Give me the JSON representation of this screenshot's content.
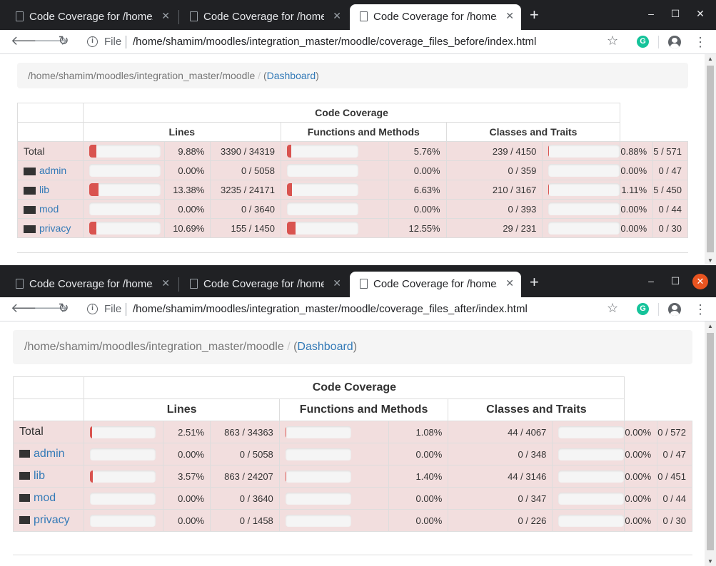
{
  "top": {
    "tabs": [
      {
        "title": "Code Coverage for /home/shamim/moodles/integration_master/moodle",
        "close": "✕"
      },
      {
        "title": "Code Coverage for /home/shamim/moodles/integration_master/moodle",
        "close": "✕"
      },
      {
        "title": "Code Coverage for /home/shamim/moodles/integration_master/moodle",
        "close": "✕"
      }
    ],
    "new_tab": "+",
    "window_controls": {
      "minimize": "–",
      "maximize": "☐",
      "close": "✕"
    },
    "address": {
      "scheme_label": "File",
      "url": "/home/shamim/moodles/integration_master/moodle/coverage_files_before/index.html"
    },
    "breadcrumb": {
      "path": "/home/shamim/moodles/integration_master/moodle",
      "separator": "/",
      "open_paren": "(",
      "link": "Dashboard",
      "close_paren": ")"
    },
    "table": {
      "title": "Code Coverage",
      "groups": [
        "Lines",
        "Functions and Methods",
        "Classes and Traits"
      ],
      "rows": [
        {
          "name": "Total",
          "folder": false,
          "lines_pct": "9.88%",
          "lines_frac": "3390 / 34319",
          "lines_ratio": 0.0988,
          "funcs_pct": "5.76%",
          "funcs_frac": "239 / 4150",
          "funcs_ratio": 0.0576,
          "classes_pct": "0.88%",
          "classes_frac": "5 / 571",
          "classes_ratio": 0.0088
        },
        {
          "name": "admin",
          "folder": true,
          "lines_pct": "0.00%",
          "lines_frac": "0 / 5058",
          "lines_ratio": 0,
          "funcs_pct": "0.00%",
          "funcs_frac": "0 / 359",
          "funcs_ratio": 0,
          "classes_pct": "0.00%",
          "classes_frac": "0 / 47",
          "classes_ratio": 0
        },
        {
          "name": "lib",
          "folder": true,
          "lines_pct": "13.38%",
          "lines_frac": "3235 / 24171",
          "lines_ratio": 0.1338,
          "funcs_pct": "6.63%",
          "funcs_frac": "210 / 3167",
          "funcs_ratio": 0.0663,
          "classes_pct": "1.11%",
          "classes_frac": "5 / 450",
          "classes_ratio": 0.0111
        },
        {
          "name": "mod",
          "folder": true,
          "lines_pct": "0.00%",
          "lines_frac": "0 / 3640",
          "lines_ratio": 0,
          "funcs_pct": "0.00%",
          "funcs_frac": "0 / 393",
          "funcs_ratio": 0,
          "classes_pct": "0.00%",
          "classes_frac": "0 / 44",
          "classes_ratio": 0
        },
        {
          "name": "privacy",
          "folder": true,
          "lines_pct": "10.69%",
          "lines_frac": "155 / 1450",
          "lines_ratio": 0.1069,
          "funcs_pct": "12.55%",
          "funcs_frac": "29 / 231",
          "funcs_ratio": 0.1255,
          "classes_pct": "0.00%",
          "classes_frac": "0 / 30",
          "classes_ratio": 0
        }
      ]
    }
  },
  "bottom": {
    "tabs": [
      {
        "title": "Code Coverage for /home/shamim/moodles/integration_master/moodle",
        "close": "✕"
      },
      {
        "title": "Code Coverage for /home/shamim/moodles/integration_master/moodle",
        "close": "✕"
      },
      {
        "title": "Code Coverage for /home/shamim/moodles/integration_master/moodle",
        "close": "✕"
      }
    ],
    "new_tab": "+",
    "window_controls": {
      "minimize": "–",
      "maximize": "☐",
      "close": "✕"
    },
    "address": {
      "scheme_label": "File",
      "url": "/home/shamim/moodles/integration_master/moodle/coverage_files_after/index.html"
    },
    "breadcrumb": {
      "path": "/home/shamim/moodles/integration_master/moodle",
      "separator": "/",
      "open_paren": "(",
      "link": "Dashboard",
      "close_paren": ")"
    },
    "table": {
      "title": "Code Coverage",
      "groups": [
        "Lines",
        "Functions and Methods",
        "Classes and Traits"
      ],
      "rows": [
        {
          "name": "Total",
          "folder": false,
          "lines_pct": "2.51%",
          "lines_frac": "863 / 34363",
          "lines_ratio": 0.0251,
          "funcs_pct": "1.08%",
          "funcs_frac": "44 / 4067",
          "funcs_ratio": 0.0108,
          "classes_pct": "0.00%",
          "classes_frac": "0 / 572",
          "classes_ratio": 0
        },
        {
          "name": "admin",
          "folder": true,
          "lines_pct": "0.00%",
          "lines_frac": "0 / 5058",
          "lines_ratio": 0,
          "funcs_pct": "0.00%",
          "funcs_frac": "0 / 348",
          "funcs_ratio": 0,
          "classes_pct": "0.00%",
          "classes_frac": "0 / 47",
          "classes_ratio": 0
        },
        {
          "name": "lib",
          "folder": true,
          "lines_pct": "3.57%",
          "lines_frac": "863 / 24207",
          "lines_ratio": 0.0357,
          "funcs_pct": "1.40%",
          "funcs_frac": "44 / 3146",
          "funcs_ratio": 0.014,
          "classes_pct": "0.00%",
          "classes_frac": "0 / 451",
          "classes_ratio": 0
        },
        {
          "name": "mod",
          "folder": true,
          "lines_pct": "0.00%",
          "lines_frac": "0 / 3640",
          "lines_ratio": 0,
          "funcs_pct": "0.00%",
          "funcs_frac": "0 / 347",
          "funcs_ratio": 0,
          "classes_pct": "0.00%",
          "classes_frac": "0 / 44",
          "classes_ratio": 0
        },
        {
          "name": "privacy",
          "folder": true,
          "lines_pct": "0.00%",
          "lines_frac": "0 / 1458",
          "lines_ratio": 0,
          "funcs_pct": "0.00%",
          "funcs_frac": "0 / 226",
          "funcs_ratio": 0,
          "classes_pct": "0.00%",
          "classes_frac": "0 / 30",
          "classes_ratio": 0
        }
      ]
    }
  },
  "icons": {
    "back": "arrow-left-icon",
    "forward": "arrow-right-icon",
    "reload": "reload-icon",
    "info": "info-icon",
    "bookmark": "star-icon",
    "extension": "grammarly-icon",
    "account": "account-icon",
    "menu": "kebab-menu-icon",
    "folder": "folder-icon",
    "tab": "page-icon"
  },
  "colors": {
    "danger_bar": "#d9534f",
    "danger_row": "#f2dede",
    "link": "#337ab7",
    "tab_strip": "#202124"
  }
}
